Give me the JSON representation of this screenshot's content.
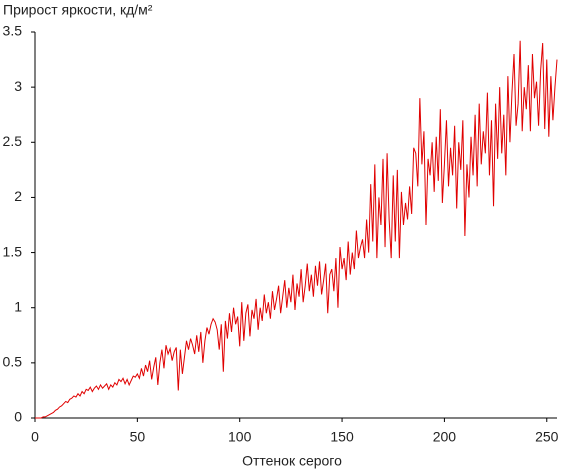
{
  "chart_data": {
    "type": "line",
    "title": "Прирост яркости, кд/м²",
    "x_label": "Оттенок серого",
    "xlim": [
      0,
      255
    ],
    "ylim": [
      0,
      3.5
    ],
    "xticks": [
      0,
      50,
      100,
      150,
      200,
      250
    ],
    "yticks": [
      0,
      0.5,
      1,
      1.5,
      2,
      2.5,
      3,
      3.5
    ],
    "grid": false,
    "x": [
      0,
      1,
      2,
      3,
      4,
      5,
      6,
      7,
      8,
      9,
      10,
      11,
      12,
      13,
      14,
      15,
      16,
      17,
      18,
      19,
      20,
      21,
      22,
      23,
      24,
      25,
      26,
      27,
      28,
      29,
      30,
      31,
      32,
      33,
      34,
      35,
      36,
      37,
      38,
      39,
      40,
      41,
      42,
      43,
      44,
      45,
      46,
      47,
      48,
      49,
      50,
      51,
      52,
      53,
      54,
      55,
      56,
      57,
      58,
      59,
      60,
      61,
      62,
      63,
      64,
      65,
      66,
      67,
      68,
      69,
      70,
      71,
      72,
      73,
      74,
      75,
      76,
      77,
      78,
      79,
      80,
      81,
      82,
      83,
      84,
      85,
      86,
      87,
      88,
      89,
      90,
      91,
      92,
      93,
      94,
      95,
      96,
      97,
      98,
      99,
      100,
      101,
      102,
      103,
      104,
      105,
      106,
      107,
      108,
      109,
      110,
      111,
      112,
      113,
      114,
      115,
      116,
      117,
      118,
      119,
      120,
      121,
      122,
      123,
      124,
      125,
      126,
      127,
      128,
      129,
      130,
      131,
      132,
      133,
      134,
      135,
      136,
      137,
      138,
      139,
      140,
      141,
      142,
      143,
      144,
      145,
      146,
      147,
      148,
      149,
      150,
      151,
      152,
      153,
      154,
      155,
      156,
      157,
      158,
      159,
      160,
      161,
      162,
      163,
      164,
      165,
      166,
      167,
      168,
      169,
      170,
      171,
      172,
      173,
      174,
      175,
      176,
      177,
      178,
      179,
      180,
      181,
      182,
      183,
      184,
      185,
      186,
      187,
      188,
      189,
      190,
      191,
      192,
      193,
      194,
      195,
      196,
      197,
      198,
      199,
      200,
      201,
      202,
      203,
      204,
      205,
      206,
      207,
      208,
      209,
      210,
      211,
      212,
      213,
      214,
      215,
      216,
      217,
      218,
      219,
      220,
      221,
      222,
      223,
      224,
      225,
      226,
      227,
      228,
      229,
      230,
      231,
      232,
      233,
      234,
      235,
      236,
      237,
      238,
      239,
      240,
      241,
      242,
      243,
      244,
      245,
      246,
      247,
      248,
      249,
      250,
      251,
      252,
      253,
      254,
      255
    ],
    "series": [
      {
        "color": "#e00000",
        "values": [
          0,
          0,
          0,
          0,
          0.01,
          0.01,
          0.02,
          0.03,
          0.04,
          0.05,
          0.07,
          0.08,
          0.1,
          0.11,
          0.13,
          0.15,
          0.14,
          0.17,
          0.18,
          0.2,
          0.19,
          0.22,
          0.2,
          0.24,
          0.22,
          0.26,
          0.25,
          0.28,
          0.24,
          0.27,
          0.29,
          0.26,
          0.3,
          0.27,
          0.29,
          0.31,
          0.26,
          0.3,
          0.28,
          0.32,
          0.3,
          0.35,
          0.33,
          0.36,
          0.31,
          0.35,
          0.3,
          0.34,
          0.38,
          0.37,
          0.4,
          0.36,
          0.45,
          0.38,
          0.48,
          0.42,
          0.52,
          0.35,
          0.46,
          0.55,
          0.3,
          0.5,
          0.62,
          0.45,
          0.66,
          0.58,
          0.63,
          0.52,
          0.6,
          0.64,
          0.25,
          0.62,
          0.4,
          0.55,
          0.7,
          0.62,
          0.72,
          0.66,
          0.58,
          0.75,
          0.6,
          0.78,
          0.5,
          0.7,
          0.82,
          0.76,
          0.85,
          0.9,
          0.87,
          0.8,
          0.62,
          0.85,
          0.42,
          0.88,
          0.72,
          0.95,
          0.78,
          1.0,
          0.85,
          0.92,
          0.65,
          1.05,
          0.7,
          0.95,
          1.03,
          0.74,
          0.98,
          0.9,
          1.08,
          0.8,
          1.0,
          0.88,
          1.12,
          0.95,
          1.05,
          0.9,
          1.15,
          0.98,
          1.08,
          1.2,
          0.95,
          1.1,
          1.25,
          1.0,
          1.18,
          1.05,
          1.3,
          0.98,
          1.22,
          1.1,
          1.35,
          1.05,
          1.2,
          1.4,
          1.15,
          1.3,
          1.1,
          1.38,
          1.2,
          1.42,
          1.12,
          1.25,
          1.4,
          0.95,
          1.3,
          1.35,
          1.15,
          1.45,
          1.0,
          1.55,
          1.35,
          1.45,
          1.25,
          1.6,
          1.3,
          1.5,
          1.35,
          1.7,
          1.45,
          1.55,
          1.62,
          1.45,
          1.8,
          1.5,
          2.12,
          1.6,
          2.3,
          1.45,
          2.0,
          1.75,
          2.35,
          1.55,
          2.4,
          1.8,
          1.45,
          2.2,
          1.6,
          2.25,
          1.45,
          2.05,
          1.75,
          1.95,
          1.8,
          2.1,
          1.85,
          2.45,
          2.4,
          2.1,
          2.9,
          2.3,
          2.6,
          1.75,
          2.35,
          2.2,
          2.5,
          2.05,
          2.55,
          2.15,
          2.8,
          1.95,
          2.3,
          2.7,
          2.1,
          2.45,
          2.2,
          2.65,
          1.9,
          2.5,
          2.25,
          2.7,
          1.65,
          2.3,
          2.0,
          2.55,
          2.2,
          2.75,
          2.1,
          2.85,
          2.3,
          2.6,
          2.4,
          2.95,
          2.2,
          2.7,
          1.92,
          2.85,
          2.35,
          3.0,
          2.4,
          2.75,
          2.2,
          3.1,
          2.5,
          2.95,
          3.3,
          2.65,
          2.85,
          3.42,
          2.6,
          3.0,
          2.8,
          3.2,
          2.6,
          3.3,
          2.9,
          3.05,
          2.65,
          3.15,
          3.4,
          2.62,
          3.25,
          2.55,
          3.1,
          2.7,
          3.0,
          3.25
        ]
      }
    ]
  }
}
